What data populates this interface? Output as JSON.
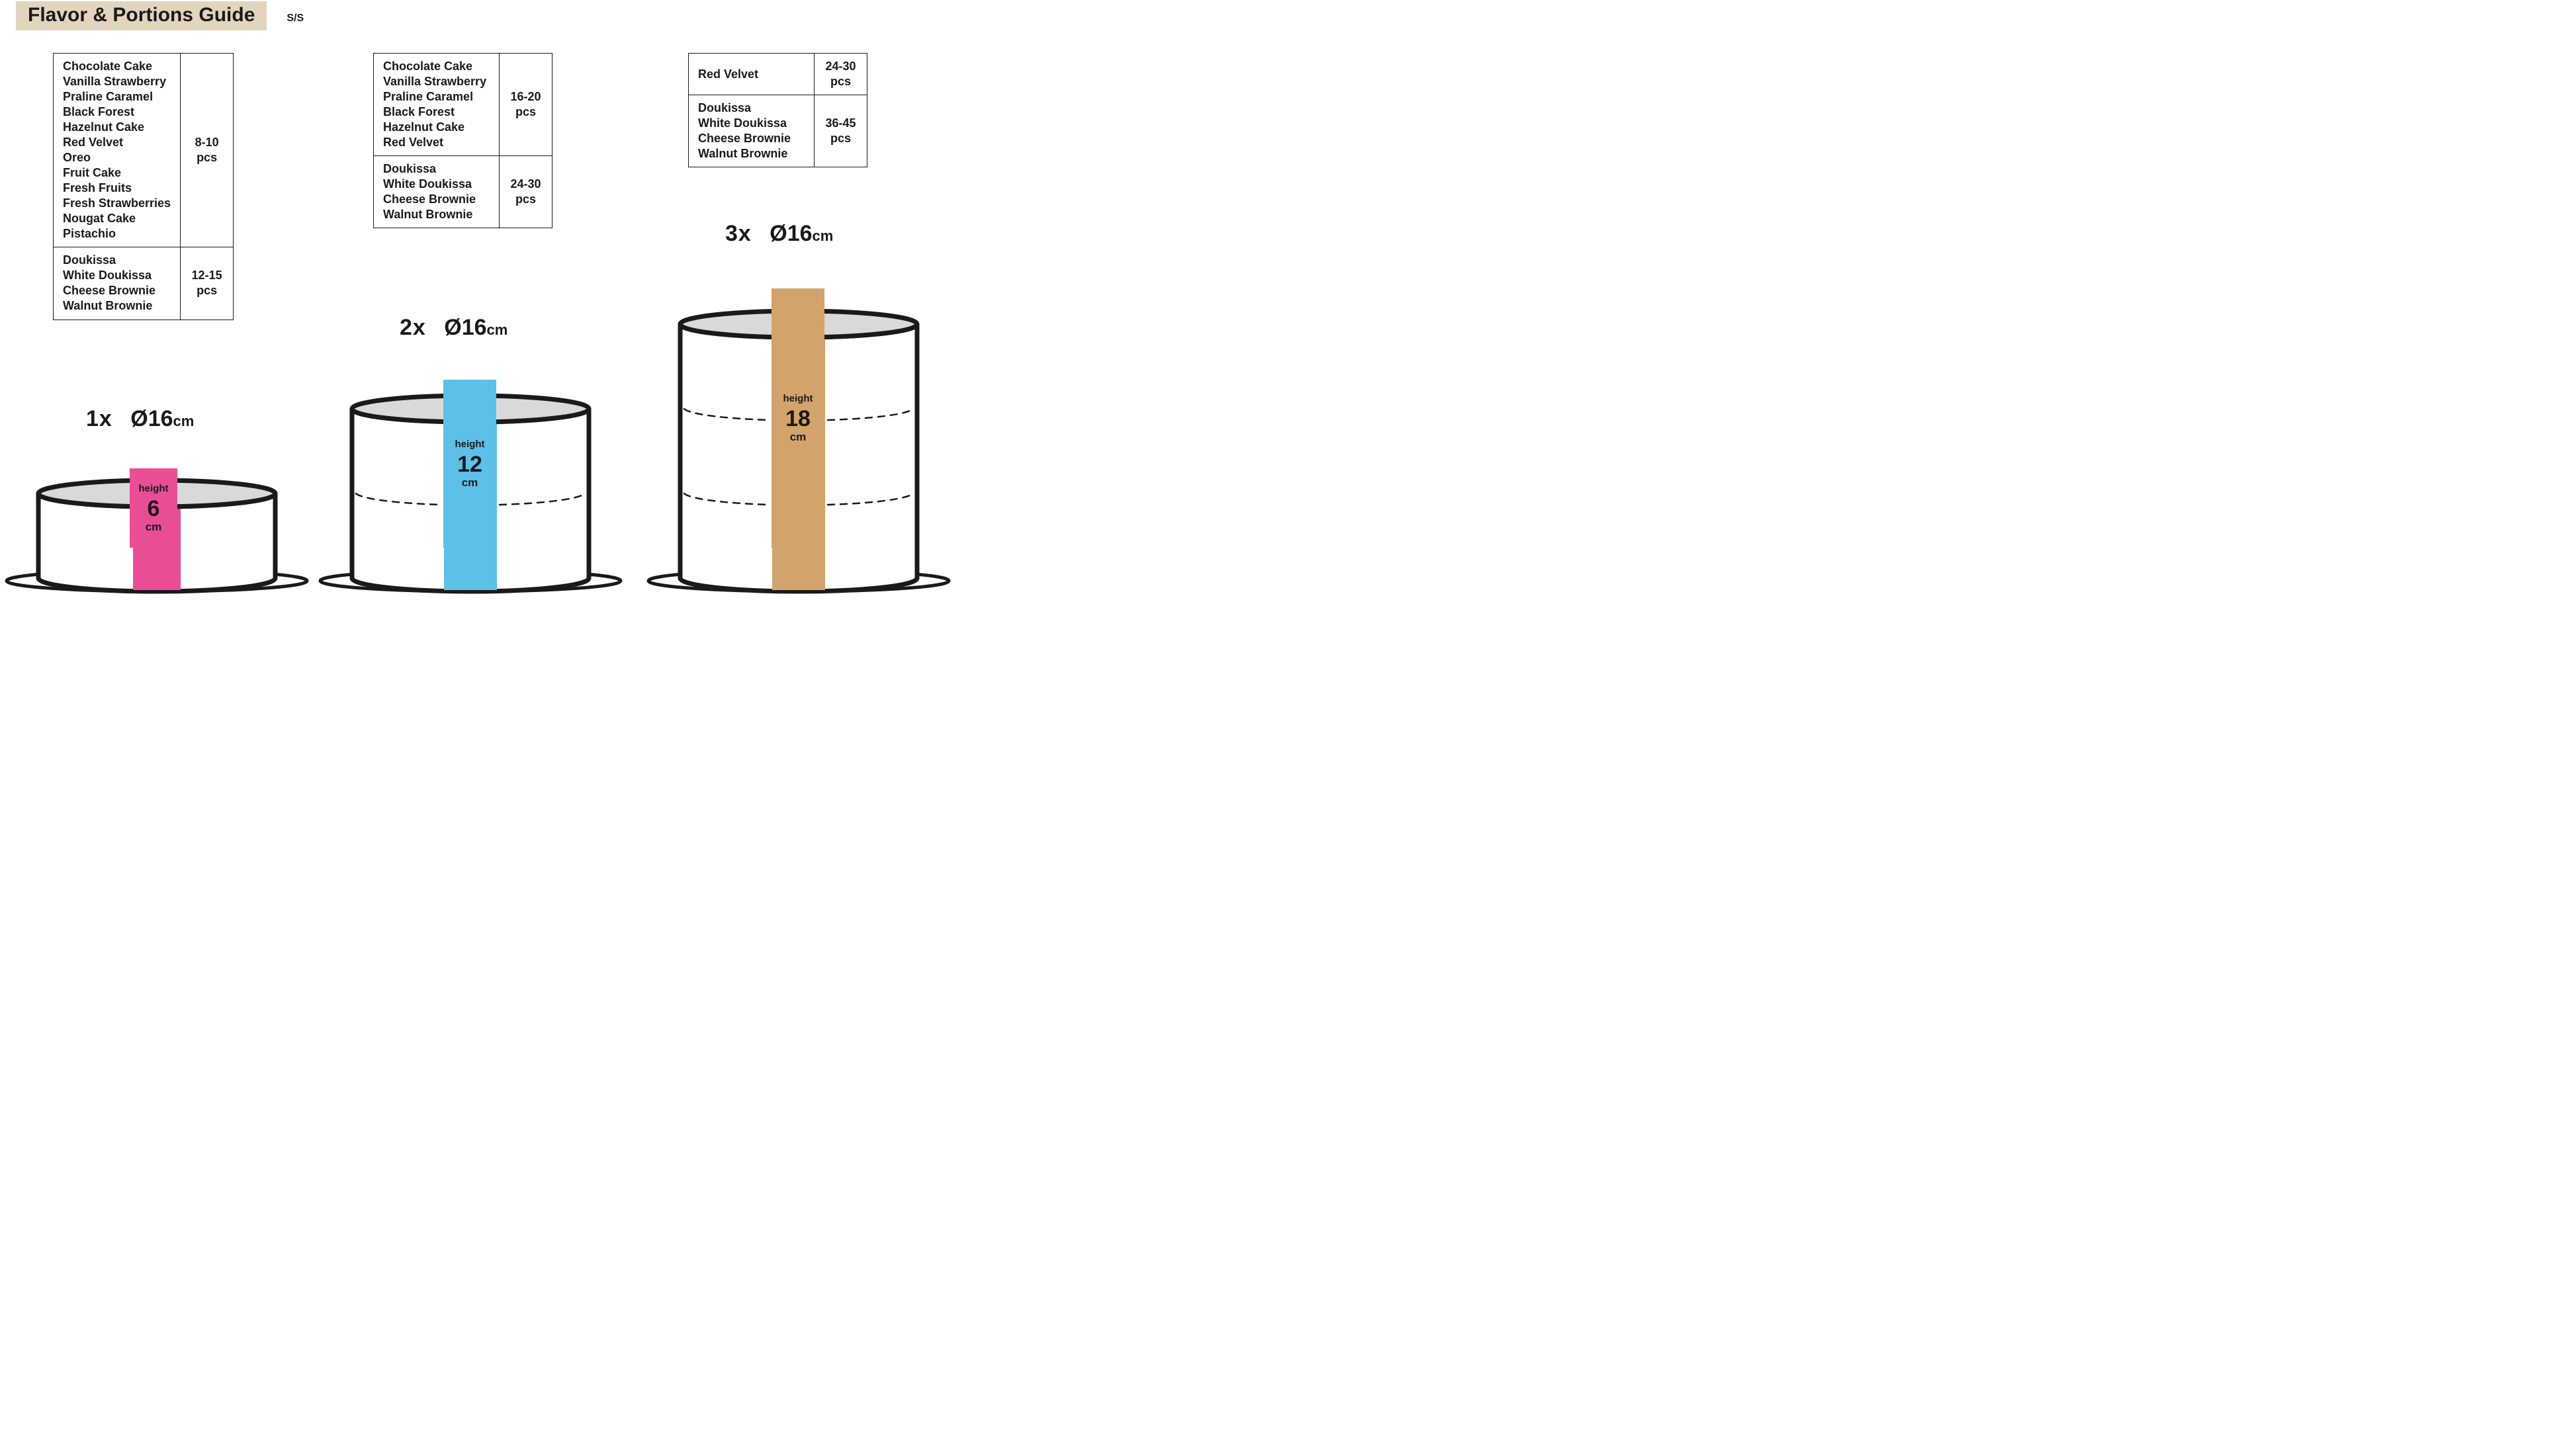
{
  "colors": {
    "titleBadgeBg": "#e3d4bd",
    "stroke": "#1a1a1a",
    "cakeTopFill": "#d9d9d9",
    "plateFill": "#ffffff",
    "band1": "#e94e95",
    "band2": "#5cc0e8",
    "band3": "#d2a36a"
  },
  "strokeWidths": {
    "cakeOutline": 7,
    "plateOutline": 5,
    "dash": 2.5
  },
  "title": {
    "main": "Flavor & Portions Guide",
    "sub": "S/S"
  },
  "tables": [
    {
      "id": "table-1",
      "rows": [
        {
          "flavors": [
            "Chocolate Cake",
            "Vanilla Strawberry",
            "Praline Caramel",
            "Black Forest",
            "Hazelnut Cake",
            "Red Velvet",
            "Oreo",
            "Fruit Cake",
            "Fresh Fruits",
            "Fresh Strawberries",
            "Nougat Cake",
            "Pistachio"
          ],
          "pcs": "8-10\npcs"
        },
        {
          "flavors": [
            "Doukissa",
            "White Doukissa",
            "Cheese Brownie",
            "Walnut Brownie"
          ],
          "pcs": "12-15\npcs"
        }
      ]
    },
    {
      "id": "table-2",
      "rows": [
        {
          "flavors": [
            "Chocolate Cake",
            "Vanilla Strawberry",
            "Praline Caramel",
            "Black Forest",
            "Hazelnut Cake",
            "Red Velvet"
          ],
          "pcs": "16-20\npcs"
        },
        {
          "flavors": [
            "Doukissa",
            "White Doukissa",
            "Cheese Brownie",
            "Walnut Brownie"
          ],
          "pcs": "24-30\npcs"
        }
      ]
    },
    {
      "id": "table-3",
      "rows": [
        {
          "flavors": [
            "Red Velvet"
          ],
          "pcs": "24-30\npcs"
        },
        {
          "flavors": [
            "Doukissa",
            "White Doukissa",
            "Cheese Brownie",
            "Walnut Brownie"
          ],
          "pcs": "36-45\npcs"
        }
      ]
    }
  ],
  "cakes": [
    {
      "id": "1",
      "mult": "1x",
      "diameter": "Ø16",
      "cm": "cm",
      "heightLabel": "height",
      "heightVal": "6",
      "heightCm": "cm",
      "bandColor": "#e94e95",
      "layers": 1
    },
    {
      "id": "2",
      "mult": "2x",
      "diameter": "Ø16",
      "cm": "cm",
      "heightLabel": "height",
      "heightVal": "12",
      "heightCm": "cm",
      "bandColor": "#5cc0e8",
      "layers": 2
    },
    {
      "id": "3",
      "mult": "3x",
      "diameter": "Ø16",
      "cm": "cm",
      "heightLabel": "height",
      "heightVal": "18",
      "heightCm": "cm",
      "bandColor": "#d2a36a",
      "layers": 3
    }
  ]
}
